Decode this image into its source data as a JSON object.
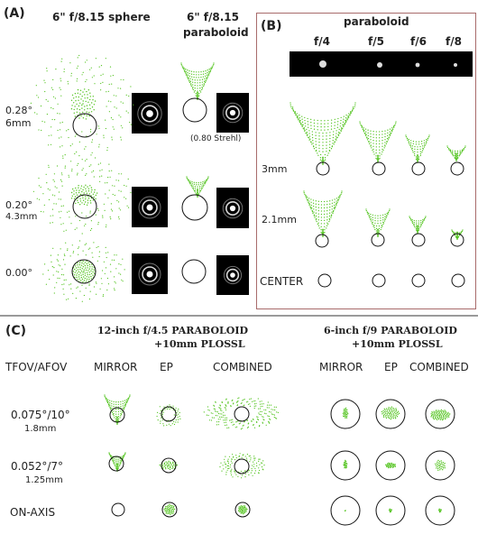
{
  "panel_a": {
    "label": "(A)",
    "sphere_title": "6\" f/8.15  sphere",
    "parab_title_1": "6\" f/8.15",
    "parab_title_2": "paraboloid",
    "row1_angle": "0.28°",
    "row1_height": "6mm",
    "row2_angle": "0.20°",
    "row2_height": "4.3mm",
    "row3_angle": "0.00°",
    "strehl_note": "(0.80 Strehl)"
  },
  "panel_b": {
    "label": "(B)",
    "title": "paraboloid",
    "ratios": [
      "f/4",
      "f/5",
      "f/6",
      "f/8"
    ],
    "row1": "3mm",
    "row2": "2.1mm",
    "row3": "CENTER"
  },
  "panel_c": {
    "label": "(C)",
    "left_title_1": "12-inch  f/4.5 PARABOLOID",
    "left_title_2": "+10mm PLOSSL",
    "right_title_1": "6-inch  f/9 PARABOLOID",
    "right_title_2": "+10mm PLOSSL",
    "col_head": "TFOV/AFOV",
    "left_cols": [
      "MIRROR",
      "EP",
      "COMBINED"
    ],
    "right_cols": [
      "MIRROR",
      "EP",
      "COMBINED"
    ],
    "row1_main": "0.075°/10°",
    "row1_sub": "1.8mm",
    "row2_main": "0.052°/7°",
    "row2_sub": "1.25mm",
    "row3": "ON-AXIS"
  },
  "colors": {
    "spot_green": "#4fc21a",
    "frame": "#a86b6b",
    "divider": "#9a9a9a"
  }
}
